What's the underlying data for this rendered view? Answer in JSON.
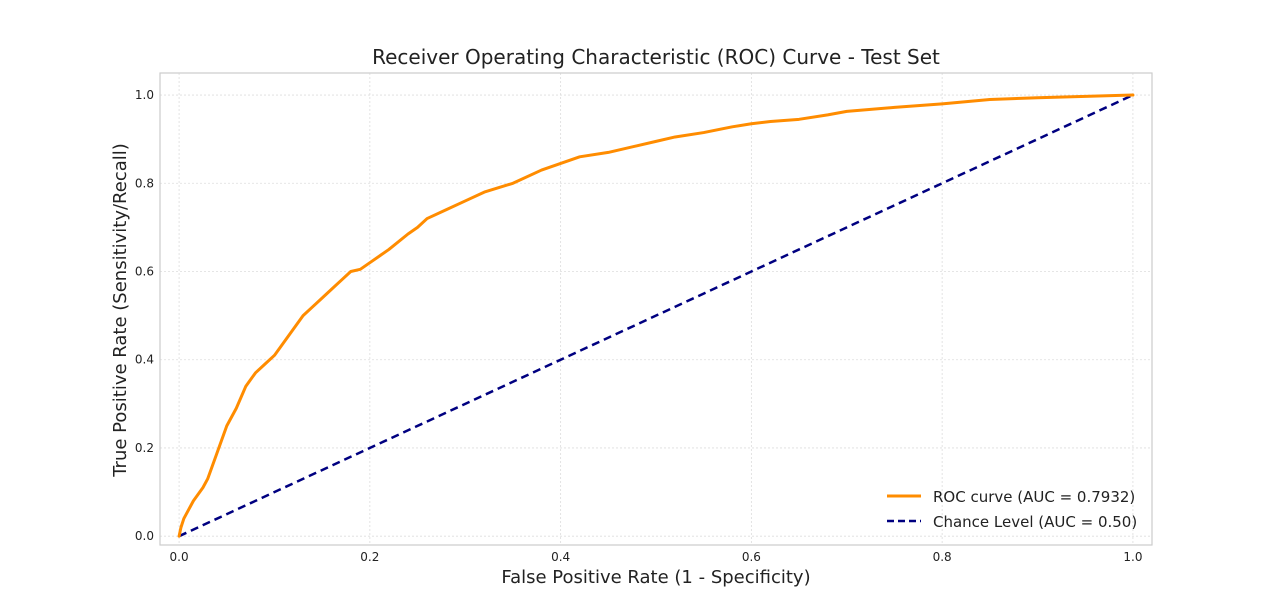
{
  "chart_data": {
    "type": "line",
    "title": "Receiver Operating Characteristic (ROC) Curve - Test Set",
    "xlabel": "False Positive Rate (1 - Specificity)",
    "ylabel": "True Positive Rate (Sensitivity/Recall)",
    "xlim": [
      -0.02,
      1.02
    ],
    "ylim": [
      -0.02,
      1.05
    ],
    "xticks": [
      0.0,
      0.2,
      0.4,
      0.6,
      0.8,
      1.0
    ],
    "xtick_labels": [
      "0.0",
      "0.2",
      "0.4",
      "0.6",
      "0.8",
      "1.0"
    ],
    "yticks": [
      0.0,
      0.2,
      0.4,
      0.6,
      0.8,
      1.0
    ],
    "ytick_labels": [
      "0.0",
      "0.2",
      "0.4",
      "0.6",
      "0.8",
      "1.0"
    ],
    "grid": true,
    "legend_position": "lower-right",
    "series": [
      {
        "name": "ROC curve (AUC = 0.7932)",
        "color": "#ff8c00",
        "style": "solid",
        "x": [
          0.0,
          0.002,
          0.005,
          0.01,
          0.015,
          0.02,
          0.025,
          0.03,
          0.04,
          0.05,
          0.06,
          0.07,
          0.08,
          0.09,
          0.1,
          0.11,
          0.12,
          0.13,
          0.14,
          0.15,
          0.16,
          0.17,
          0.18,
          0.19,
          0.2,
          0.22,
          0.24,
          0.25,
          0.26,
          0.28,
          0.3,
          0.32,
          0.35,
          0.38,
          0.4,
          0.42,
          0.45,
          0.48,
          0.5,
          0.52,
          0.55,
          0.58,
          0.6,
          0.62,
          0.65,
          0.68,
          0.7,
          0.75,
          0.8,
          0.85,
          0.9,
          0.95,
          1.0
        ],
        "y": [
          0.0,
          0.02,
          0.04,
          0.06,
          0.08,
          0.095,
          0.11,
          0.13,
          0.19,
          0.25,
          0.29,
          0.34,
          0.37,
          0.39,
          0.41,
          0.44,
          0.47,
          0.5,
          0.52,
          0.54,
          0.56,
          0.58,
          0.6,
          0.605,
          0.62,
          0.65,
          0.685,
          0.7,
          0.72,
          0.74,
          0.76,
          0.78,
          0.8,
          0.83,
          0.845,
          0.86,
          0.87,
          0.885,
          0.895,
          0.905,
          0.915,
          0.928,
          0.935,
          0.94,
          0.945,
          0.955,
          0.963,
          0.972,
          0.98,
          0.99,
          0.994,
          0.997,
          1.0
        ]
      },
      {
        "name": "Chance Level (AUC = 0.50)",
        "color": "#000080",
        "style": "dashed",
        "x": [
          0.0,
          1.0
        ],
        "y": [
          0.0,
          1.0
        ]
      }
    ]
  }
}
